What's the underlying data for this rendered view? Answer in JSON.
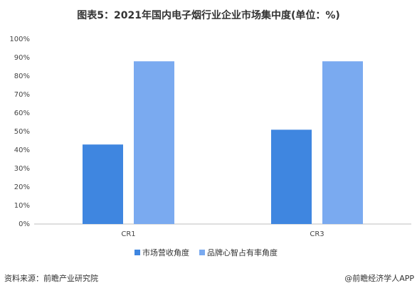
{
  "chart_data": {
    "type": "bar",
    "title": "图表5：2021年国内电子烟行业企业市场集中度(单位：%)",
    "categories": [
      "CR1",
      "CR3"
    ],
    "series": [
      {
        "name": "市场营收角度",
        "color": "#3f86e0",
        "values": [
          43,
          51
        ]
      },
      {
        "name": "品牌心智占有率角度",
        "color": "#7aaaf0",
        "values": [
          88,
          88
        ]
      }
    ],
    "ylim": [
      0,
      100
    ],
    "yticks": [
      {
        "value": 0,
        "label": "0%"
      },
      {
        "value": 10,
        "label": "10%"
      },
      {
        "value": 20,
        "label": "20%"
      },
      {
        "value": 30,
        "label": "30%"
      },
      {
        "value": 40,
        "label": "40%"
      },
      {
        "value": 50,
        "label": "50%"
      },
      {
        "value": 60,
        "label": "60%"
      },
      {
        "value": 70,
        "label": "70%"
      },
      {
        "value": 80,
        "label": "80%"
      },
      {
        "value": 90,
        "label": "90%"
      },
      {
        "value": 100,
        "label": "100%"
      }
    ],
    "grid": false,
    "source": "资料来源：前瞻产业研究院",
    "credit": "@前瞻经济学人APP"
  }
}
